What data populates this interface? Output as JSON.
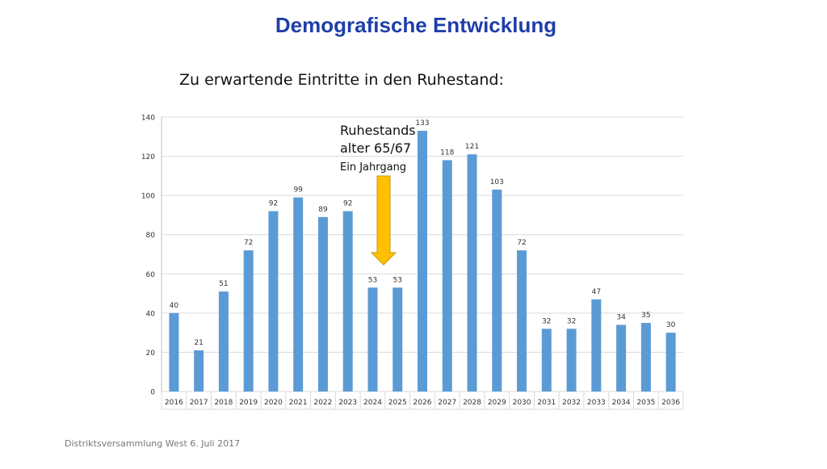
{
  "slide": {
    "title": "Demografische Entwicklung",
    "subtitle": "Zu erwartende Eintritte in den Ruhestand:",
    "footer": "Distriktsversammlung West 6. Juli 2017"
  },
  "annotation": {
    "line1": "Ruhestands",
    "line2": "alter 65/67",
    "line3": "Ein Jahrgang",
    "arrow_color": "#ffc000",
    "arrow_stroke": "#c99700",
    "points_to": "2024"
  },
  "chart_data": {
    "type": "bar",
    "categories": [
      "2016",
      "2017",
      "2018",
      "2019",
      "2020",
      "2021",
      "2022",
      "2023",
      "2024",
      "2025",
      "2026",
      "2027",
      "2028",
      "2029",
      "2030",
      "2031",
      "2032",
      "2033",
      "2034",
      "2035",
      "2036"
    ],
    "values": [
      40,
      21,
      51,
      72,
      92,
      99,
      89,
      92,
      53,
      53,
      133,
      118,
      121,
      103,
      72,
      32,
      32,
      47,
      34,
      35,
      30
    ],
    "title": "",
    "xlabel": "",
    "ylabel": "",
    "ylim": [
      0,
      140
    ],
    "yticks": [
      0,
      20,
      40,
      60,
      80,
      100,
      120,
      140
    ],
    "grid": true,
    "legend": "none",
    "bar_color": "#5b9bd5",
    "data_labels": true
  }
}
